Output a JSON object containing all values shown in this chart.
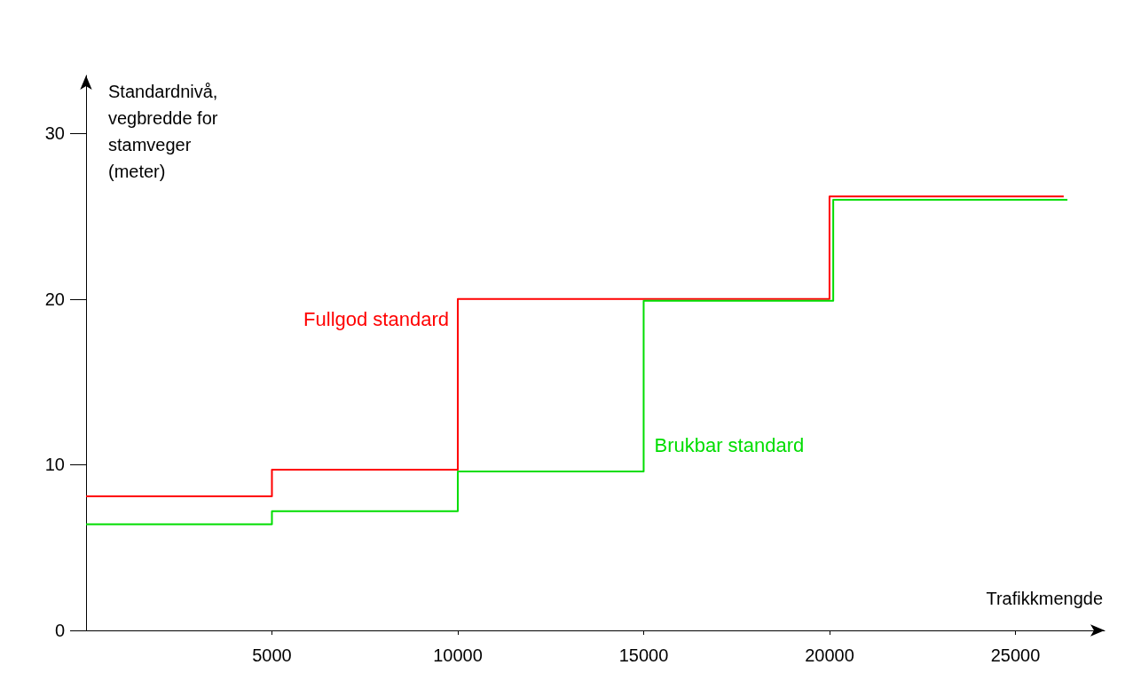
{
  "chart_data": {
    "type": "step",
    "xlabel": "Trafikkmengde",
    "ylabel": "Standardnivå, vegbredde for stamveger (meter)",
    "xlim": [
      0,
      27400
    ],
    "xticks": [
      5000,
      10000,
      15000,
      20000,
      25000
    ],
    "ylim": [
      0,
      33.5
    ],
    "yticks": [
      0,
      10,
      20,
      30
    ],
    "grid": false,
    "legend": false,
    "series": [
      {
        "name": "Fullgod standard",
        "color": "#ff0000",
        "x": [
          0,
          5000,
          10000,
          20000,
          26300
        ],
        "values": [
          8.1,
          9.7,
          20,
          26.2,
          26.2
        ]
      },
      {
        "name": "Brukbar standard",
        "color": "#00dd00",
        "x": [
          0,
          5000,
          10000,
          15000,
          20100,
          26400
        ],
        "values": [
          6.4,
          7.2,
          9.6,
          19.9,
          26,
          26
        ]
      }
    ]
  }
}
